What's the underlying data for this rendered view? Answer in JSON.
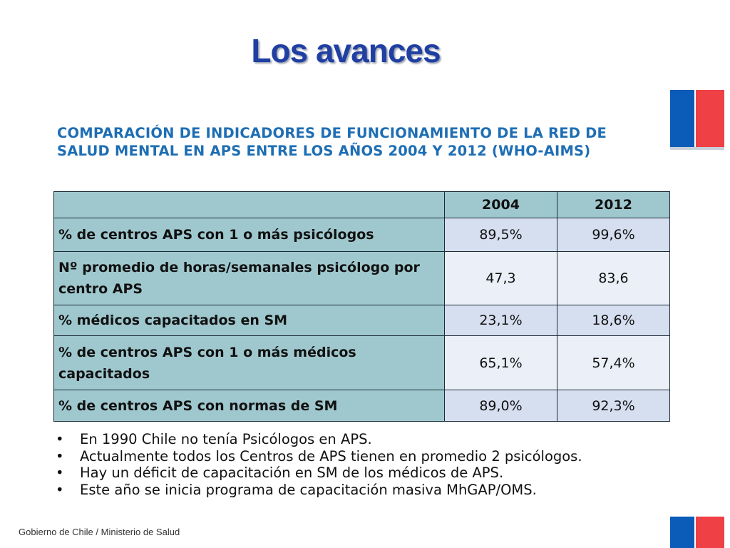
{
  "title": "Los avances",
  "subtitle": "COMPARACIÓN DE INDICADORES DE FUNCIONAMIENTO DE LA RED DE SALUD MENTAL EN APS ENTRE LOS AÑOS 2004 Y 2012 (WHO-AIMS)",
  "table": {
    "header": [
      "",
      "2004",
      "2012"
    ],
    "rows": [
      {
        "label": "% de centros APS con 1 o más psicólogos",
        "v2004": "89,5%",
        "v2012": "99,6%"
      },
      {
        "label": "Nº promedio de horas/semanales  psicólogo por centro APS",
        "v2004": "47,3",
        "v2012": "83,6"
      },
      {
        "label": "% médicos capacitados en SM",
        "v2004": "23,1%",
        "v2012": "18,6%"
      },
      {
        "label": "% de centros  APS con 1 o más médicos capacitados",
        "v2004": "65,1%",
        "v2012": "57,4%"
      },
      {
        "label": "% de centros APS con normas  de SM",
        "v2004": "89,0%",
        "v2012": "92,3%"
      }
    ]
  },
  "bullets": [
    "En 1990 Chile no tenía Psicólogos en APS.",
    "Actualmente todos los Centros de APS tienen en promedio 2 psicólogos.",
    "Hay un déficit de capacitación en SM de los médicos de APS.",
    "Este año se inicia programa de capacitación masiva MhGAP/OMS."
  ],
  "bullet_symbol": "•",
  "footer": "Gobierno de Chile / Ministerio de Salud",
  "colors": {
    "title": "#1f3fa3",
    "subtitle": "#1e6eb4",
    "flag_blue": "#0a5cb8",
    "flag_red": "#ef4046",
    "label_cell": "#9fc8ce",
    "value_cell_odd": "#d6dff0",
    "value_cell_even": "#eaeff8"
  }
}
